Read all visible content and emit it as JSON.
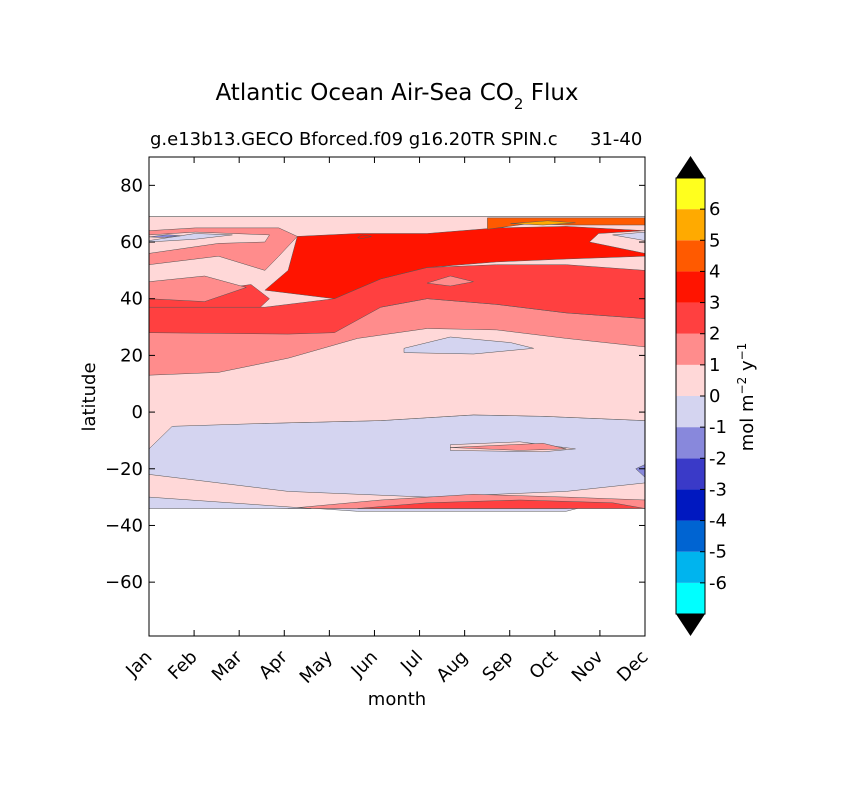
{
  "chart_data": {
    "type": "heatmap",
    "title_main": "Atlantic Ocean Air-Sea CO",
    "title_subscript": "2",
    "title_suffix": " Flux",
    "subtitle_left": "g.e13b13.GECO Bforced.f09 g16.20TR SPIN.c",
    "subtitle_right": "31-40",
    "xlabel": "month",
    "ylabel": "latitude",
    "x_ticks": [
      "Jan",
      "Feb",
      "Mar",
      "Apr",
      "May",
      "Jun",
      "Jul",
      "Aug",
      "Sep",
      "Oct",
      "Nov",
      "Dec"
    ],
    "y_ticks": [
      {
        "value": 80,
        "label": "80"
      },
      {
        "value": 60,
        "label": "60"
      },
      {
        "value": 40,
        "label": "40"
      },
      {
        "value": 20,
        "label": "20"
      },
      {
        "value": 0,
        "label": "0"
      },
      {
        "value": -20,
        "label": "−20"
      },
      {
        "value": -40,
        "label": "−40"
      },
      {
        "value": -60,
        "label": "−60"
      }
    ],
    "xlim": [
      0,
      10.7
    ],
    "ylim": [
      -79,
      90
    ],
    "data_lat_range": [
      -34,
      69
    ],
    "colorbar": {
      "label_main": "mol m",
      "label_exp1": "−2",
      "label_mid": " y",
      "label_exp2": "−1",
      "levels": [
        -7,
        -6,
        -5,
        -4,
        -3,
        -2,
        -1,
        0,
        1,
        2,
        3,
        4,
        5,
        6,
        7
      ],
      "colors": [
        "#00ffff",
        "#00b4ee",
        "#0064d2",
        "#0018c0",
        "#3a3ac8",
        "#8888dc",
        "#d4d4f0",
        "#ffd8d8",
        "#ff8c8c",
        "#ff4040",
        "#ff1400",
        "#ff5a00",
        "#ffaa00",
        "#ffff1e"
      ],
      "tick_labels": [
        "-6",
        "-5",
        "-4",
        "-3",
        "-2",
        "-1",
        "0",
        "1",
        "2",
        "3",
        "4",
        "5",
        "6"
      ],
      "extend": "both"
    },
    "bands": [
      {
        "level": -1,
        "pts": [
          [
            0,
            -30
          ],
          [
            4.5,
            -35
          ],
          [
            9,
            -35
          ],
          [
            10.7,
            -28
          ],
          [
            10.7,
            -3
          ],
          [
            8.5,
            -1.5
          ],
          [
            7,
            -1
          ],
          [
            5,
            -3
          ],
          [
            2.5,
            -4
          ],
          [
            0.5,
            -4
          ],
          [
            0,
            -12
          ]
        ]
      },
      {
        "level": 0,
        "pts": [
          [
            0,
            -13
          ],
          [
            0.5,
            -5
          ],
          [
            2.5,
            -4
          ],
          [
            5,
            -3
          ],
          [
            7,
            -1
          ],
          [
            8.5,
            -1.5
          ],
          [
            10.7,
            -3
          ],
          [
            10.7,
            24
          ],
          [
            9,
            27
          ],
          [
            7.5,
            30
          ],
          [
            6,
            30.5
          ],
          [
            4.5,
            27
          ],
          [
            3,
            20
          ],
          [
            1.5,
            15
          ],
          [
            0,
            14
          ]
        ]
      },
      {
        "level": 1,
        "pts": [
          [
            0,
            13
          ],
          [
            1.5,
            14
          ],
          [
            3,
            19
          ],
          [
            4.5,
            26
          ],
          [
            6,
            29.5
          ],
          [
            7.5,
            29
          ],
          [
            9,
            26
          ],
          [
            10.7,
            23
          ],
          [
            10.7,
            33
          ],
          [
            9,
            35
          ],
          [
            7.5,
            38
          ],
          [
            6,
            40
          ],
          [
            5,
            37
          ],
          [
            4,
            29
          ],
          [
            3,
            28
          ],
          [
            0,
            28
          ]
        ]
      },
      {
        "level": 2,
        "pts": [
          [
            0,
            28
          ],
          [
            3,
            27.5
          ],
          [
            4,
            28
          ],
          [
            5,
            37
          ],
          [
            6,
            40
          ],
          [
            7.5,
            38
          ],
          [
            9,
            35
          ],
          [
            10.7,
            33
          ],
          [
            10.7,
            50
          ],
          [
            9,
            52
          ],
          [
            7.5,
            52
          ],
          [
            6,
            51
          ],
          [
            5,
            47
          ],
          [
            4,
            40
          ],
          [
            2.5,
            37
          ],
          [
            0,
            38
          ]
        ]
      },
      {
        "level": 3,
        "pts": [
          [
            4,
            40
          ],
          [
            5,
            47
          ],
          [
            6,
            51
          ],
          [
            7.5,
            53
          ],
          [
            9,
            54
          ],
          [
            10.7,
            55
          ],
          [
            10.7,
            64
          ],
          [
            9,
            65.5
          ],
          [
            7.5,
            65
          ],
          [
            6,
            63
          ],
          [
            4.5,
            63
          ],
          [
            3.2,
            62
          ],
          [
            3,
            50
          ],
          [
            2.5,
            43
          ]
        ]
      },
      {
        "level": 1,
        "pts": [
          [
            0,
            52
          ],
          [
            1.5,
            55
          ],
          [
            2.5,
            50
          ],
          [
            2.8,
            55
          ],
          [
            3.2,
            62
          ],
          [
            2.8,
            65
          ],
          [
            1,
            65
          ],
          [
            0,
            64
          ]
        ]
      },
      {
        "level": 4,
        "pts": [
          [
            7.3,
            64.5
          ],
          [
            8.2,
            66.5
          ],
          [
            9,
            66
          ],
          [
            10.7,
            66
          ],
          [
            10.7,
            68.5
          ],
          [
            7.3,
            68.5
          ]
        ]
      },
      {
        "level": 5,
        "pts": [
          [
            7.8,
            66.5
          ],
          [
            8.6,
            67.5
          ],
          [
            9.2,
            66.8
          ],
          [
            8.5,
            66
          ]
        ]
      },
      {
        "level": 1,
        "pts": [
          [
            6,
            45.5
          ],
          [
            6.5,
            48
          ],
          [
            7,
            46
          ],
          [
            6.5,
            44.5
          ]
        ]
      },
      {
        "level": 2,
        "pts": [
          [
            0,
            40
          ],
          [
            2.2,
            45
          ],
          [
            2.6,
            40
          ],
          [
            2.4,
            37
          ],
          [
            0,
            37
          ]
        ]
      },
      {
        "level": 1,
        "pts": [
          [
            0,
            46
          ],
          [
            1.2,
            48
          ],
          [
            2.1,
            44
          ],
          [
            1.2,
            39
          ],
          [
            0,
            40
          ]
        ]
      },
      {
        "level": 0,
        "pts": [
          [
            0,
            56
          ],
          [
            1.5,
            59.5
          ],
          [
            2.5,
            60
          ],
          [
            2.6,
            62.5
          ],
          [
            1,
            63.5
          ],
          [
            0,
            62.5
          ]
        ]
      },
      {
        "level": -1,
        "pts": [
          [
            0,
            60.5
          ],
          [
            1,
            63
          ],
          [
            1.8,
            62.5
          ],
          [
            1,
            61
          ],
          [
            0,
            60
          ]
        ]
      },
      {
        "level": 0,
        "pts": [
          [
            9.5,
            60
          ],
          [
            10.7,
            56
          ],
          [
            10.7,
            64
          ],
          [
            9.7,
            63
          ]
        ]
      },
      {
        "level": -1,
        "pts": [
          [
            10,
            62.5
          ],
          [
            10.7,
            60.5
          ],
          [
            10.7,
            63.5
          ]
        ]
      },
      {
        "level": -2,
        "pts": [
          [
            0,
            61.8
          ],
          [
            0.4,
            62.6
          ],
          [
            0.7,
            62.2
          ],
          [
            0.3,
            61.6
          ]
        ]
      },
      {
        "level": -1,
        "pts": [
          [
            5.5,
            22.5
          ],
          [
            6.5,
            26.5
          ],
          [
            7.8,
            24.5
          ],
          [
            8.3,
            22.5
          ],
          [
            7,
            20.5
          ],
          [
            5.5,
            21
          ]
        ]
      },
      {
        "level": 0,
        "pts": [
          [
            6.5,
            -13.5
          ],
          [
            8.5,
            -14
          ],
          [
            9.2,
            -13
          ],
          [
            8,
            -10.5
          ],
          [
            6.5,
            -11.5
          ]
        ]
      },
      {
        "level": 1,
        "pts": [
          [
            6.5,
            -12.5
          ],
          [
            8.5,
            -11
          ],
          [
            9,
            -13
          ],
          [
            8,
            -13.5
          ]
        ]
      },
      {
        "level": 0,
        "pts": [
          [
            0,
            -22
          ],
          [
            3,
            -28
          ],
          [
            6,
            -30
          ],
          [
            9,
            -28
          ],
          [
            10.7,
            -25
          ],
          [
            10.7,
            -31
          ],
          [
            9,
            -34
          ],
          [
            6,
            -34
          ],
          [
            3,
            -34
          ],
          [
            0,
            -33
          ]
        ]
      },
      {
        "level": 1,
        "pts": [
          [
            3,
            -34
          ],
          [
            5,
            -31
          ],
          [
            7,
            -29
          ],
          [
            9,
            -30
          ],
          [
            10.7,
            -31
          ],
          [
            10.7,
            -34
          ]
        ]
      },
      {
        "level": 2,
        "pts": [
          [
            4.5,
            -34
          ],
          [
            6,
            -32
          ],
          [
            8,
            -31
          ],
          [
            10,
            -32
          ],
          [
            10.7,
            -34
          ]
        ]
      },
      {
        "level": -2,
        "pts": [
          [
            10.5,
            -20
          ],
          [
            10.7,
            -18.5
          ],
          [
            10.7,
            -23
          ]
        ]
      },
      {
        "level": -1,
        "pts": [
          [
            0,
            -30
          ],
          [
            3.5,
            -34
          ],
          [
            0,
            -34
          ]
        ]
      },
      {
        "level": 3,
        "pts": [
          [
            4.5,
            61.5
          ],
          [
            4.6,
            62.5
          ],
          [
            4.8,
            62
          ],
          [
            4.6,
            61.2
          ]
        ]
      }
    ],
    "top_line_lat": 69
  }
}
